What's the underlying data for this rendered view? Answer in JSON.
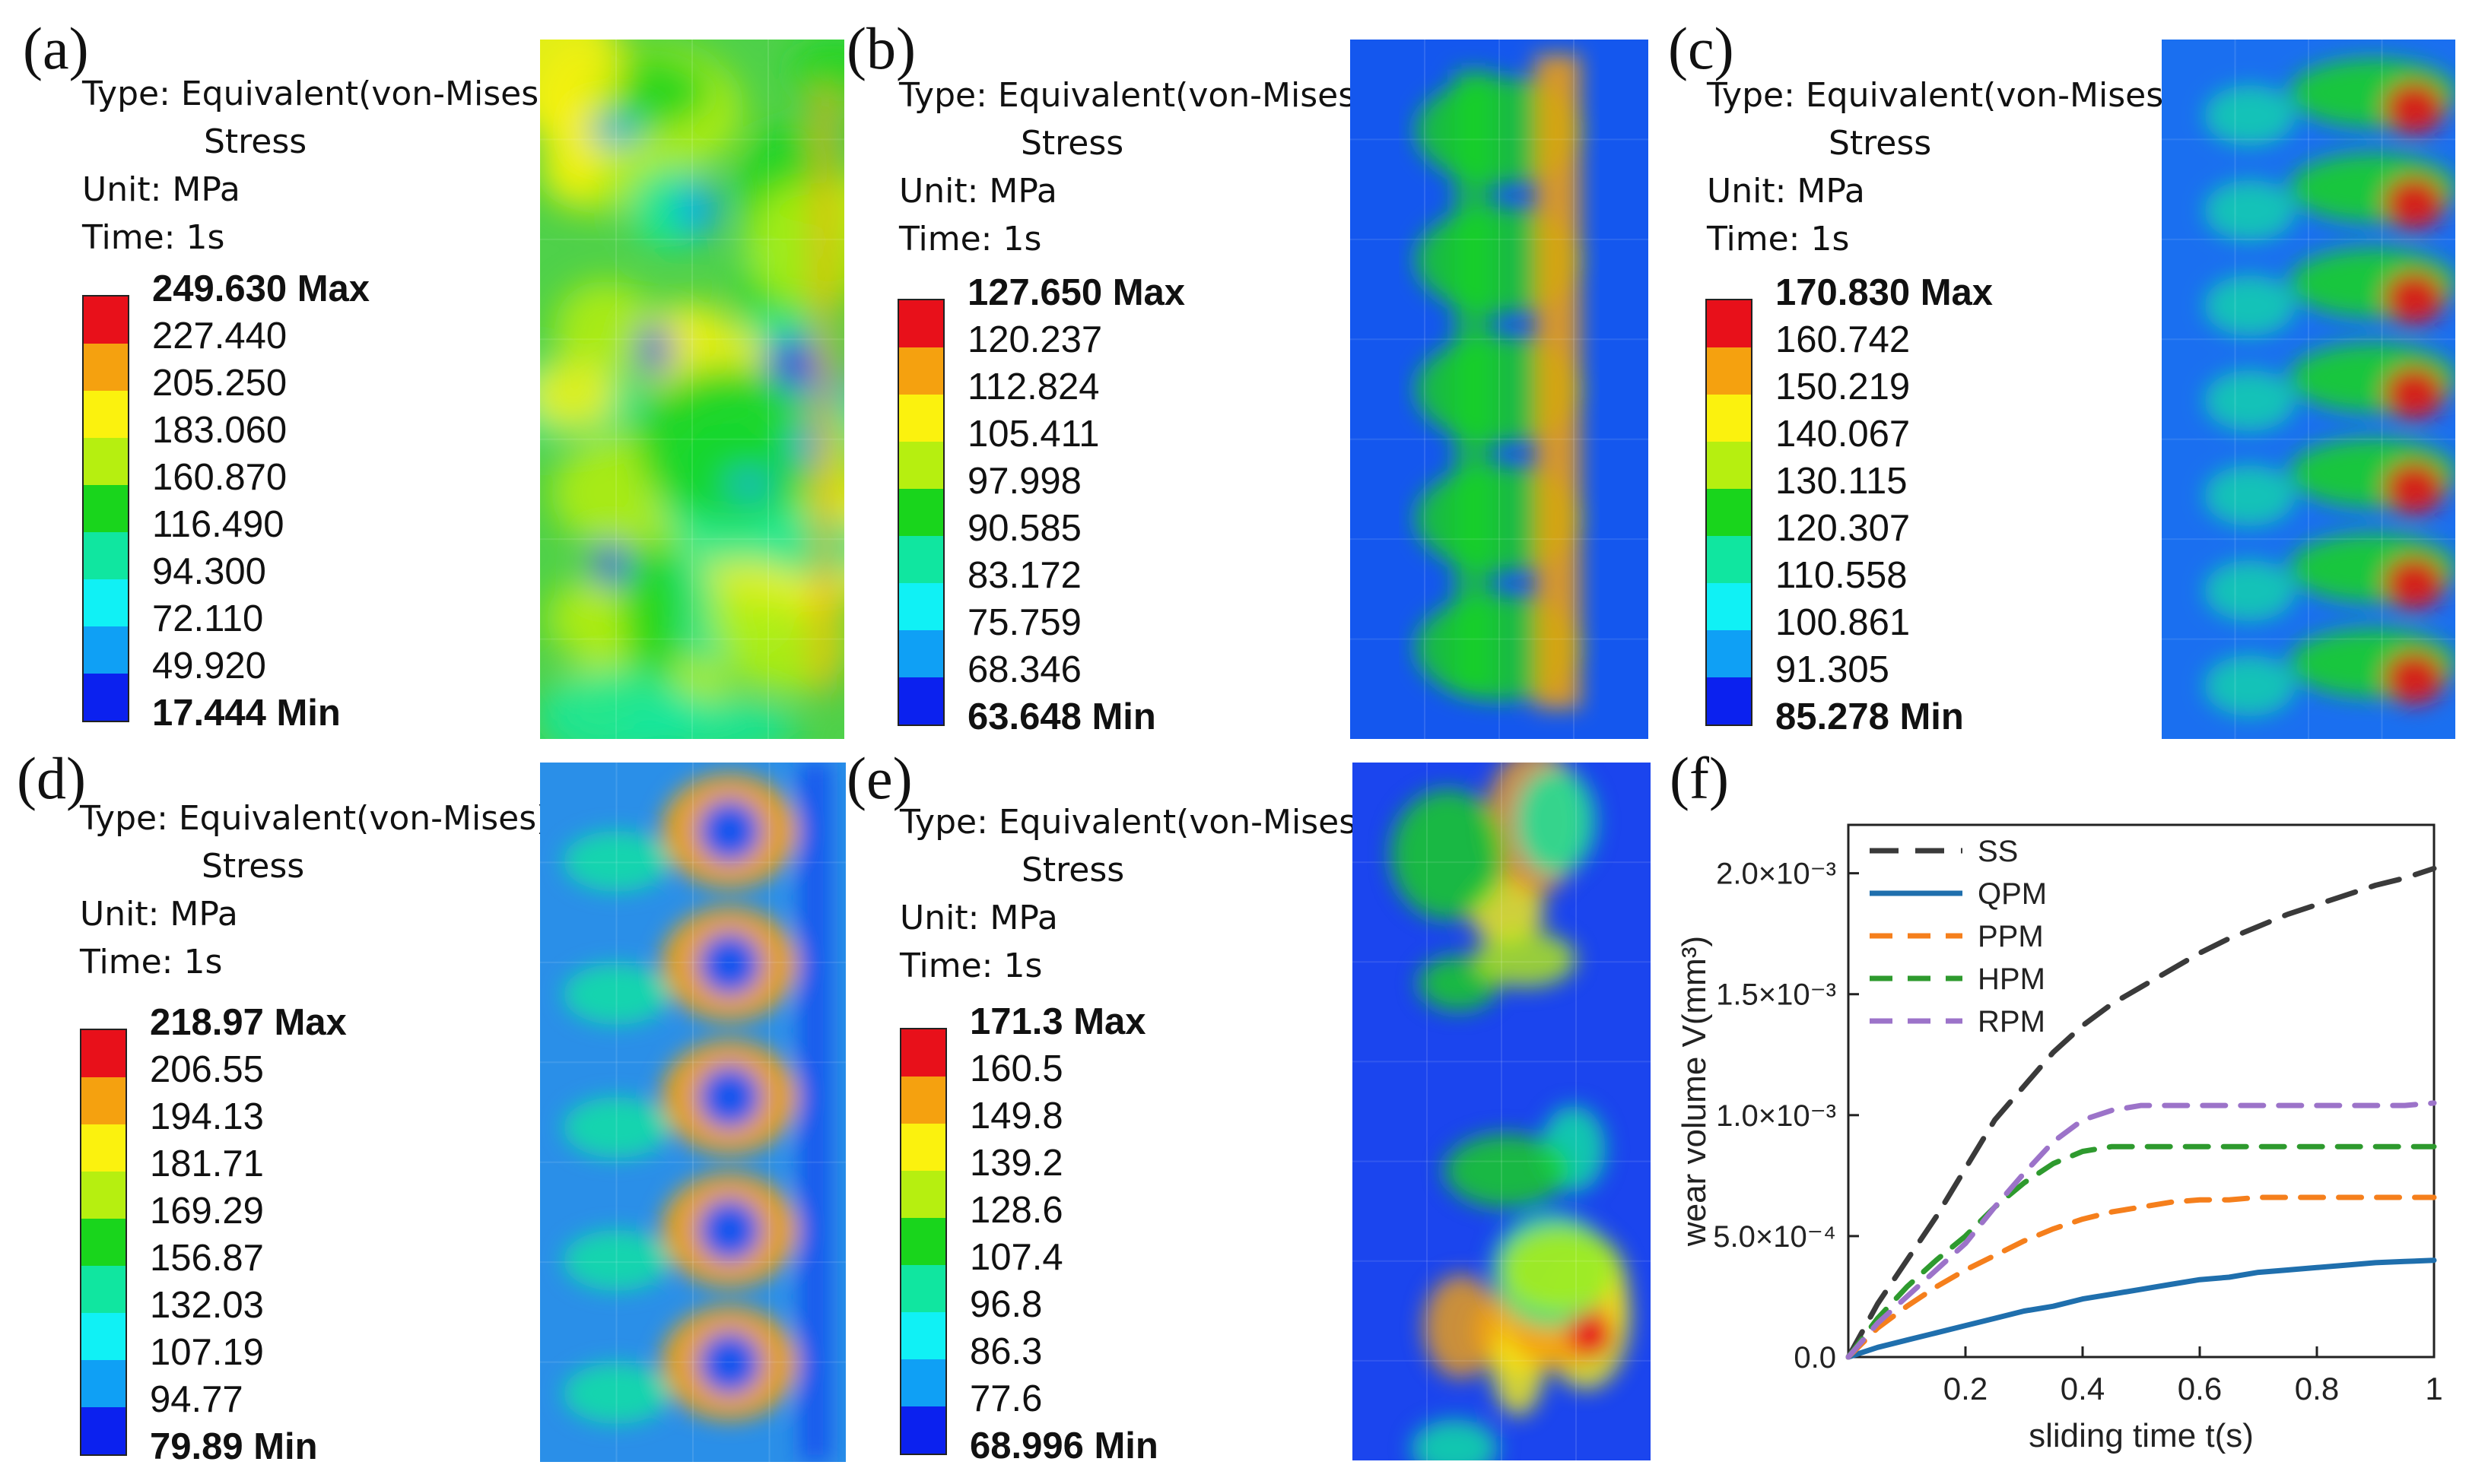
{
  "panels": [
    {
      "label": "(a)",
      "type_line1": "Type: Equivalent(von-Mises)",
      "type_line2": "Stress",
      "unit": "Unit: MPa",
      "time": "Time: 1s",
      "legend": [
        "249.630 Max",
        "227.440",
        "205.250",
        "183.060",
        "160.870",
        "116.490",
        "94.300",
        "72.110",
        "49.920",
        "17.444 Min"
      ]
    },
    {
      "label": "(b)",
      "type_line1": "Type: Equivalent(von-Mises)",
      "type_line2": "Stress",
      "unit": "Unit: MPa",
      "time": "Time: 1s",
      "legend": [
        "127.650 Max",
        "120.237",
        "112.824",
        "105.411",
        "97.998",
        "90.585",
        "83.172",
        "75.759",
        "68.346",
        "63.648 Min"
      ]
    },
    {
      "label": "(c)",
      "type_line1": "Type: Equivalent(von-Mises)",
      "type_line2": "Stress",
      "unit": "Unit: MPa",
      "time": "Time: 1s",
      "legend": [
        "170.830 Max",
        "160.742",
        "150.219",
        "140.067",
        "130.115",
        "120.307",
        "110.558",
        "100.861",
        "91.305",
        "85.278 Min"
      ]
    },
    {
      "label": "(d)",
      "type_line1": "Type: Equivalent(von-Mises)",
      "type_line2": "Stress",
      "unit": "Unit: MPa",
      "time": "Time: 1s",
      "legend": [
        "218.97 Max",
        "206.55",
        "194.13",
        "181.71",
        "169.29",
        "156.87",
        "132.03",
        "107.19",
        "94.77",
        "79.89 Min"
      ]
    },
    {
      "label": "(e)",
      "type_line1": "Type: Equivalent(von-Mises)",
      "type_line2": "Stress",
      "unit": "Unit: MPa",
      "time": "Time: 1s",
      "legend": [
        "171.3 Max",
        "160.5",
        "149.8",
        "139.2",
        "128.6",
        "107.4",
        "96.8",
        "86.3",
        "77.6",
        "68.996 Min"
      ]
    }
  ],
  "legend_colors": [
    "#e8101a",
    "#f5a10f",
    "#fbf20e",
    "#b6ef10",
    "#19d51c",
    "#10e6a0",
    "#10f1f5",
    "#0fa0f5",
    "#0b21ef"
  ],
  "chart_label": "(f)",
  "chart_data": {
    "type": "line",
    "title": "",
    "xlabel": "sliding time t(s)",
    "ylabel": "wear volume V(mm³)",
    "xlim": [
      0,
      1.0
    ],
    "ylim": [
      0,
      0.0022
    ],
    "xticks": [
      "0.2",
      "0.4",
      "0.6",
      "0.8",
      "1"
    ],
    "xtick_values": [
      0.2,
      0.4,
      0.6,
      0.8,
      1.0
    ],
    "yticks": [
      "0.0",
      "5.0×10⁻⁴",
      "1.0×10⁻³",
      "1.5×10⁻³",
      "2.0×10⁻³"
    ],
    "ytick_values": [
      0,
      0.0005,
      0.001,
      0.0015,
      0.002
    ],
    "x": [
      0,
      0.05,
      0.1,
      0.15,
      0.2,
      0.25,
      0.3,
      0.35,
      0.4,
      0.45,
      0.5,
      0.55,
      0.6,
      0.65,
      0.7,
      0.75,
      0.8,
      0.85,
      0.9,
      0.95,
      1.0
    ],
    "series": [
      {
        "name": "SS",
        "color": "#3a3a3a",
        "dash": "38 22",
        "values": [
          0,
          0.00022,
          0.0004,
          0.00058,
          0.00078,
          0.00098,
          0.00112,
          0.00126,
          0.00137,
          0.00146,
          0.00153,
          0.0016,
          0.00167,
          0.00173,
          0.00178,
          0.00183,
          0.00187,
          0.00191,
          0.00195,
          0.00198,
          0.00202
        ]
      },
      {
        "name": "QPM",
        "color": "#1f6fad",
        "dash": "",
        "values": [
          0,
          4e-05,
          7e-05,
          0.0001,
          0.00013,
          0.00016,
          0.00019,
          0.00021,
          0.00024,
          0.00026,
          0.00028,
          0.0003,
          0.00032,
          0.00033,
          0.00035,
          0.00036,
          0.00037,
          0.00038,
          0.00039,
          0.000395,
          0.0004
        ]
      },
      {
        "name": "PPM",
        "color": "#f57f1c",
        "dash": "30 20",
        "values": [
          0,
          0.00012,
          0.00021,
          0.00029,
          0.00036,
          0.00042,
          0.00048,
          0.00053,
          0.00057,
          0.0006,
          0.00062,
          0.00064,
          0.00065,
          0.00065,
          0.00066,
          0.00066,
          0.00066,
          0.00066,
          0.00066,
          0.00066,
          0.00066
        ]
      },
      {
        "name": "HPM",
        "color": "#2e9a2e",
        "dash": "30 20",
        "values": [
          0,
          0.00016,
          0.00029,
          0.0004,
          0.0005,
          0.00062,
          0.00072,
          0.0008,
          0.00085,
          0.00087,
          0.00087,
          0.00087,
          0.00087,
          0.00087,
          0.00087,
          0.00087,
          0.00087,
          0.00087,
          0.00087,
          0.00087,
          0.00087
        ]
      },
      {
        "name": "RPM",
        "color": "#9c73c9",
        "dash": "30 20",
        "values": [
          0,
          0.00014,
          0.00025,
          0.00036,
          0.00047,
          0.00062,
          0.00076,
          0.00089,
          0.00098,
          0.00102,
          0.00104,
          0.00104,
          0.00104,
          0.00104,
          0.00104,
          0.00104,
          0.00104,
          0.00104,
          0.00104,
          0.00104,
          0.00105
        ]
      }
    ],
    "legend_position": "top-left"
  }
}
